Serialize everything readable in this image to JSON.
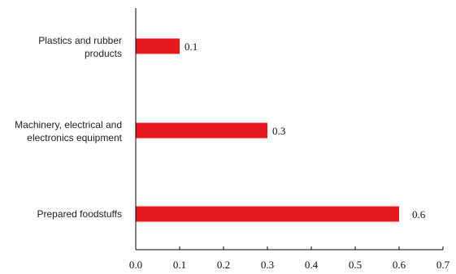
{
  "chart_data": {
    "type": "bar",
    "orientation": "horizontal",
    "categories": [
      [
        "Plastics and rubber",
        "products"
      ],
      [
        "Machinery, electrical and",
        "electronics equipment"
      ],
      [
        "Prepared foodstuffs"
      ]
    ],
    "values": [
      0.1,
      0.3,
      0.6
    ],
    "data_labels": [
      "0.1",
      "0.3",
      "0.6"
    ],
    "xlim": [
      0,
      0.7
    ],
    "x_ticks": [
      "0.0",
      "0.1",
      "0.2",
      "0.3",
      "0.4",
      "0.5",
      "0.6",
      "0.7"
    ],
    "title": "",
    "xlabel": "",
    "ylabel": "",
    "grid": false,
    "bar_color": "#e8191e"
  }
}
